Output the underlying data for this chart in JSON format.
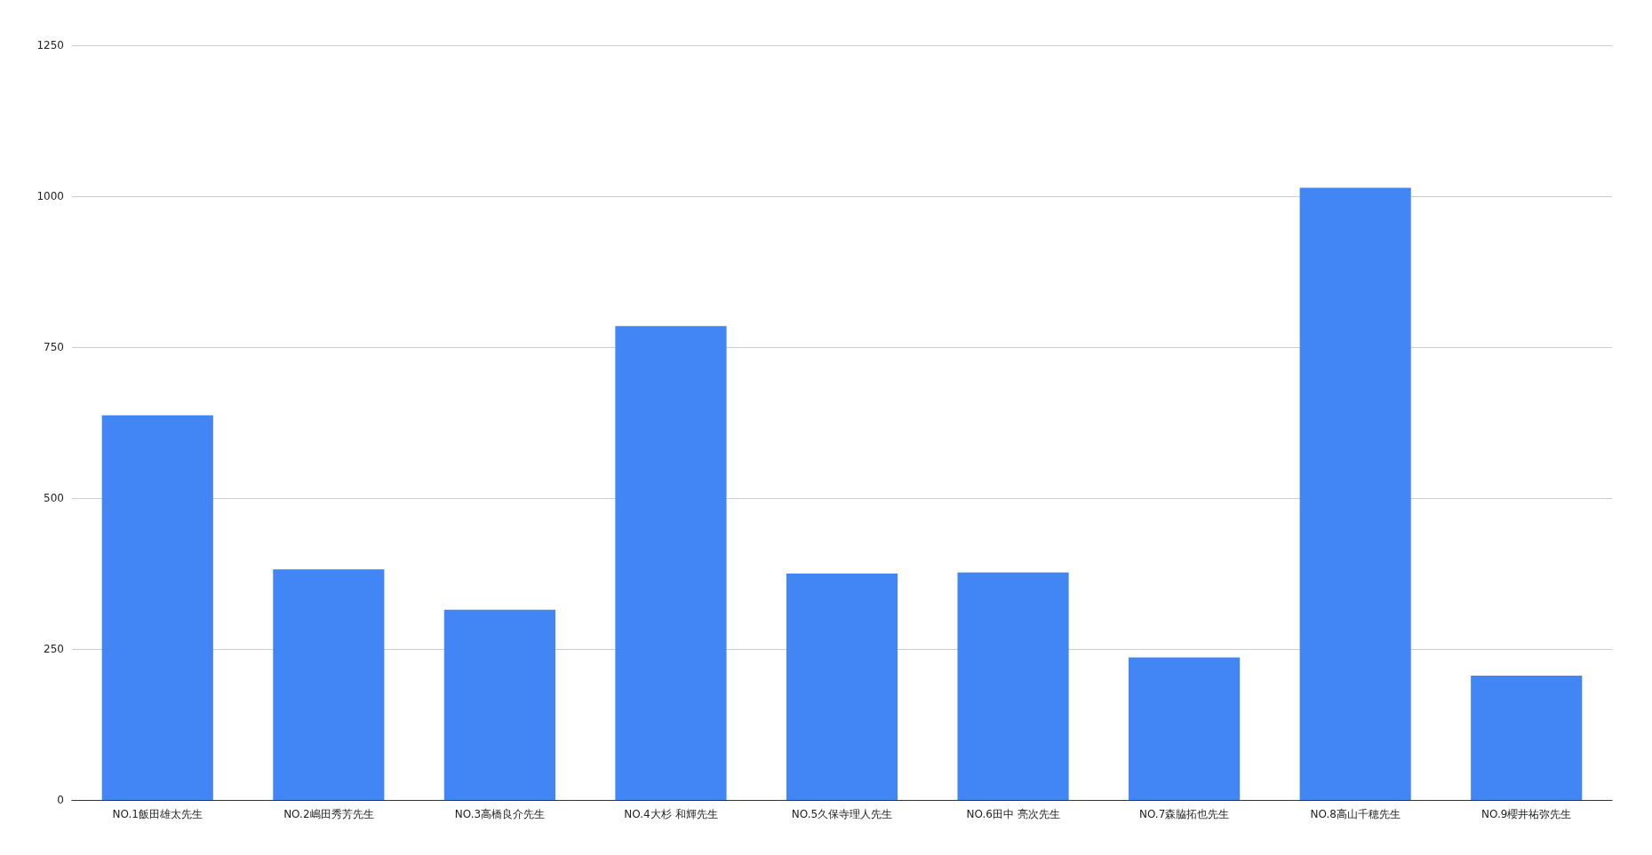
{
  "chart_data": {
    "type": "bar",
    "categories": [
      "NO.1飯田雄太先生",
      "NO.2嶋田秀芳先生",
      "NO.3高橋良介先生",
      "NO.4大杉 和輝先生",
      "NO.5久保寺理人先生",
      "NO.6田中 亮次先生",
      "NO.7森脇拓也先生",
      "NO.8高山千穂先生",
      "NO.9櫻井祐弥先生"
    ],
    "values": [
      637,
      382,
      315,
      785,
      375,
      377,
      236,
      1014,
      206
    ],
    "color": "#4285f4",
    "ylim": [
      0,
      1250
    ],
    "yticks": [
      0,
      250,
      500,
      750,
      1000,
      1250
    ],
    "grid": "y"
  }
}
